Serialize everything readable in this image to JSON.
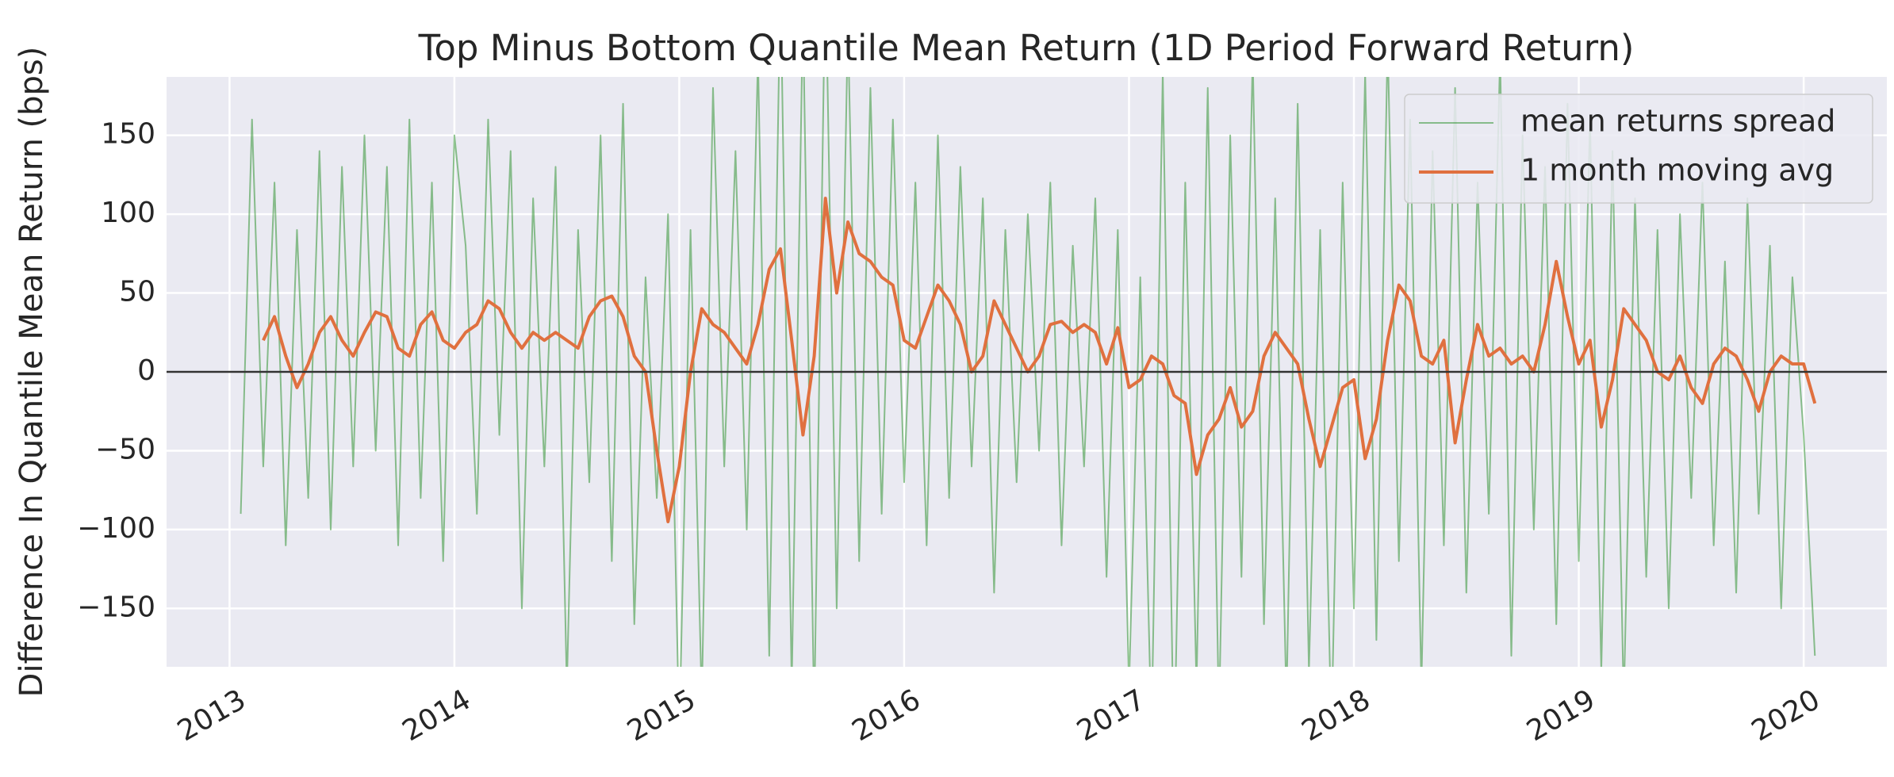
{
  "chart_data": {
    "type": "line",
    "title": "Top Minus Bottom Quantile Mean Return (1D Period Forward Return)",
    "y_label": "Difference In Quantile Mean Return (bps)",
    "x": [
      2013.05,
      2013.1,
      2013.15,
      2013.2,
      2013.25,
      2013.3,
      2013.35,
      2013.4,
      2013.45,
      2013.5,
      2013.55,
      2013.6,
      2013.65,
      2013.7,
      2013.75,
      2013.8,
      2013.85,
      2013.9,
      2013.95,
      2014.0,
      2014.05,
      2014.1,
      2014.15,
      2014.2,
      2014.25,
      2014.3,
      2014.35,
      2014.4,
      2014.45,
      2014.5,
      2014.55,
      2014.6,
      2014.65,
      2014.7,
      2014.75,
      2014.8,
      2014.85,
      2014.9,
      2014.95,
      2015.0,
      2015.05,
      2015.1,
      2015.15,
      2015.2,
      2015.25,
      2015.3,
      2015.35,
      2015.4,
      2015.45,
      2015.5,
      2015.55,
      2015.6,
      2015.65,
      2015.7,
      2015.75,
      2015.8,
      2015.85,
      2015.9,
      2015.95,
      2016.0,
      2016.05,
      2016.1,
      2016.15,
      2016.2,
      2016.25,
      2016.3,
      2016.35,
      2016.4,
      2016.45,
      2016.5,
      2016.55,
      2016.6,
      2016.65,
      2016.7,
      2016.75,
      2016.8,
      2016.85,
      2016.9,
      2016.95,
      2017.0,
      2017.05,
      2017.1,
      2017.15,
      2017.2,
      2017.25,
      2017.3,
      2017.35,
      2017.4,
      2017.45,
      2017.5,
      2017.55,
      2017.6,
      2017.65,
      2017.7,
      2017.75,
      2017.8,
      2017.85,
      2017.9,
      2017.95,
      2018.0,
      2018.05,
      2018.1,
      2018.15,
      2018.2,
      2018.25,
      2018.3,
      2018.35,
      2018.4,
      2018.45,
      2018.5,
      2018.55,
      2018.6,
      2018.65,
      2018.7,
      2018.75,
      2018.8,
      2018.85,
      2018.9,
      2018.95,
      2019.0,
      2019.05,
      2019.1,
      2019.15,
      2019.2,
      2019.25,
      2019.3,
      2019.35,
      2019.4,
      2019.45,
      2019.5,
      2019.55,
      2019.6,
      2019.65,
      2019.7,
      2019.75,
      2019.8,
      2019.85,
      2019.9,
      2019.95,
      2020.0,
      2020.05
    ],
    "series": [
      {
        "name": "mean returns spread",
        "color": "#228b22",
        "opacity": 0.5,
        "width": 2,
        "values": [
          -90,
          160,
          -60,
          120,
          -110,
          90,
          -80,
          140,
          -100,
          130,
          -60,
          150,
          -50,
          130,
          -110,
          160,
          -80,
          120,
          -120,
          150,
          80,
          -90,
          160,
          -40,
          140,
          -150,
          110,
          -60,
          130,
          -200,
          90,
          -70,
          150,
          -120,
          170,
          -160,
          60,
          -80,
          100,
          -230,
          90,
          -210,
          180,
          -60,
          140,
          -100,
          200,
          -180,
          250,
          -200,
          230,
          -220,
          260,
          -150,
          220,
          -120,
          180,
          -90,
          160,
          -70,
          120,
          -110,
          150,
          -80,
          130,
          -60,
          110,
          -140,
          90,
          -70,
          100,
          -50,
          120,
          -110,
          80,
          -60,
          110,
          -130,
          90,
          -200,
          60,
          -230,
          190,
          -250,
          120,
          -200,
          180,
          -220,
          150,
          -130,
          200,
          -160,
          110,
          -210,
          170,
          -190,
          90,
          -230,
          120,
          -150,
          190,
          -170,
          210,
          -120,
          160,
          -200,
          140,
          -110,
          180,
          -140,
          120,
          -90,
          200,
          -180,
          150,
          -100,
          130,
          -160,
          170,
          -120,
          160,
          -190,
          140,
          -210,
          110,
          -130,
          90,
          -150,
          100,
          -80,
          120,
          -110,
          70,
          -140,
          110,
          -90,
          80,
          -150,
          60,
          -40,
          -180
        ]
      },
      {
        "name": "1 month moving avg",
        "color": "#e0703f",
        "opacity": 1,
        "width": 4,
        "values": [
          null,
          null,
          20,
          35,
          10,
          -10,
          5,
          25,
          35,
          20,
          10,
          25,
          38,
          35,
          15,
          10,
          30,
          38,
          20,
          15,
          25,
          30,
          45,
          40,
          25,
          15,
          25,
          20,
          25,
          20,
          15,
          35,
          45,
          48,
          35,
          10,
          0,
          -50,
          -95,
          -60,
          0,
          40,
          30,
          25,
          15,
          5,
          30,
          65,
          78,
          20,
          -40,
          10,
          110,
          50,
          95,
          75,
          70,
          60,
          55,
          20,
          15,
          35,
          55,
          45,
          30,
          0,
          10,
          45,
          30,
          15,
          0,
          10,
          30,
          32,
          25,
          30,
          25,
          5,
          28,
          -10,
          -5,
          10,
          5,
          -15,
          -20,
          -65,
          -40,
          -30,
          -10,
          -35,
          -25,
          10,
          25,
          15,
          5,
          -30,
          -60,
          -35,
          -10,
          -5,
          -55,
          -30,
          20,
          55,
          45,
          10,
          5,
          20,
          -45,
          -5,
          30,
          10,
          15,
          5,
          10,
          0,
          30,
          70,
          35,
          5,
          20,
          -35,
          -5,
          40,
          30,
          20,
          0,
          -5,
          10,
          -10,
          -20,
          5,
          15,
          10,
          -5,
          -25,
          0,
          10,
          5,
          5,
          -20
        ]
      }
    ],
    "reference_line": 0,
    "xlim": [
      2012.72,
      2020.37
    ],
    "xticks": [
      2013,
      2014,
      2015,
      2016,
      2017,
      2018,
      2019,
      2020
    ],
    "ylim": [
      -187,
      187
    ],
    "yticks": [
      {
        "value": -150,
        "label": "−150"
      },
      {
        "value": -100,
        "label": "−100"
      },
      {
        "value": -50,
        "label": "−50"
      },
      0,
      50,
      100,
      150
    ],
    "grid": true,
    "legend": "upper right"
  }
}
